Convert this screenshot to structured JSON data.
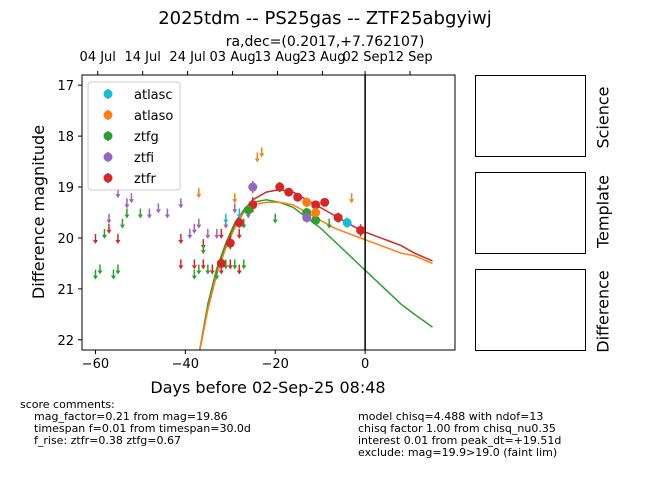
{
  "title": "2025tdm -- PS25gas -- ZTF25abgyiwj",
  "subtitle": "ra,dec=(0.2017,+7.762107)",
  "side_panels": [
    "Science",
    "Template",
    "Difference"
  ],
  "score_comments": {
    "header": "score comments:",
    "lines": [
      "mag_factor=0.21 from mag=19.86",
      "timespan f=0.01 from timespan=30.0d",
      "f_rise: ztfr=0.38 ztfg=0.67"
    ]
  },
  "model_comments": [
    "model chisq=4.488 with ndof=13",
    "chisq factor 1.00 from chisq_nu0.35",
    "interest 0.01 from peak_dt=+19.51d",
    "exclude: mag=19.9>19.0 (faint lim)"
  ],
  "colors": {
    "atlasc": "#17becf",
    "atlaso": "#ff7f0e",
    "ztfg": "#2ca02c",
    "ztfi": "#9467bd",
    "ztfr": "#d62728"
  },
  "chart_data": {
    "type": "scatter",
    "xlabel": "Days before 02-Sep-25 08:48",
    "ylabel": "Difference magnitude",
    "xlim": [
      -63,
      20
    ],
    "ylim": [
      22.2,
      16.8
    ],
    "y_inverted": true,
    "x_ticks": [
      -60,
      -40,
      -20,
      0
    ],
    "y_ticks": [
      17,
      18,
      19,
      20,
      21,
      22
    ],
    "top_ticks": [
      {
        "x": -59.5,
        "label": "04 Jul"
      },
      {
        "x": -49.5,
        "label": "14 Jul"
      },
      {
        "x": -39.5,
        "label": "24 Jul"
      },
      {
        "x": -29.5,
        "label": "03 Aug"
      },
      {
        "x": -19.5,
        "label": "13 Aug"
      },
      {
        "x": -9.5,
        "label": "23 Aug"
      },
      {
        "x": 0,
        "label": "02 Sep"
      },
      {
        "x": 10,
        "label": "12 Sep"
      }
    ],
    "vline_x": 0,
    "legend": [
      "atlasc",
      "atlaso",
      "ztfg",
      "ztfi",
      "ztfr"
    ],
    "legend_position": "upper-left",
    "upper_limits": [
      {
        "band": "ztfr",
        "points": [
          [
            -60,
            20.0
          ],
          [
            -57,
            19.8
          ],
          [
            -55,
            20.0
          ],
          [
            -41,
            20.0
          ],
          [
            -36,
            20.1
          ],
          [
            -32,
            19.9
          ],
          [
            -30,
            20.0
          ],
          [
            -28,
            19.9
          ],
          [
            -41,
            20.5
          ],
          [
            -38,
            20.5
          ],
          [
            -36,
            20.5
          ],
          [
            -34,
            20.6
          ],
          [
            -32,
            20.6
          ],
          [
            -30,
            20.5
          ],
          [
            -28,
            20.6
          ]
        ]
      },
      {
        "band": "ztfg",
        "points": [
          [
            -60,
            20.7
          ],
          [
            -59,
            20.6
          ],
          [
            -58,
            19.9
          ],
          [
            -56,
            20.7
          ],
          [
            -55,
            20.6
          ],
          [
            -54,
            19.7
          ],
          [
            -53,
            19.5
          ],
          [
            -50,
            19.5
          ],
          [
            -38,
            20.7
          ],
          [
            -37,
            20.6
          ],
          [
            -36,
            20.2
          ],
          [
            -35,
            20.6
          ],
          [
            -33,
            20.7
          ],
          [
            -31,
            20.5
          ],
          [
            -30,
            20.1
          ],
          [
            -29,
            20.5
          ],
          [
            -27,
            20.5
          ],
          [
            -27,
            19.7
          ],
          [
            -20,
            19.6
          ],
          [
            -8,
            19.7
          ]
        ]
      },
      {
        "band": "ztfi",
        "points": [
          [
            -57,
            19.6
          ],
          [
            -53,
            19.3
          ],
          [
            -52,
            19.2
          ],
          [
            -48,
            19.5
          ],
          [
            -46,
            19.4
          ],
          [
            -44,
            19.5
          ],
          [
            -41,
            19.3
          ],
          [
            -39,
            19.9
          ],
          [
            -38,
            19.8
          ],
          [
            -35,
            19.9
          ],
          [
            -33,
            19.9
          ],
          [
            -31,
            19.7
          ],
          [
            -29,
            19.4
          ],
          [
            -26,
            19.5
          ],
          [
            -25,
            19.3
          ],
          [
            -55,
            19.1
          ],
          [
            -37,
            19.7
          ]
        ]
      },
      {
        "band": "atlaso",
        "points": [
          [
            -37,
            19.1
          ],
          [
            -29,
            19.2
          ],
          [
            -24,
            18.4
          ],
          [
            -23,
            18.3
          ],
          [
            -3,
            19.2
          ]
        ]
      },
      {
        "band": "atlasc",
        "points": [
          [
            -31,
            19.6
          ],
          [
            -28,
            19.5
          ]
        ]
      }
    ],
    "detections": [
      {
        "band": "ztfr",
        "points": [
          [
            -32,
            20.5,
            0.1
          ],
          [
            -30,
            20.1,
            0.12
          ],
          [
            -28,
            19.7,
            0.1
          ],
          [
            -25,
            19.35,
            0.15
          ],
          [
            -19,
            19.0,
            0.1
          ],
          [
            -17,
            19.1,
            0.08
          ],
          [
            -15,
            19.2,
            0.08
          ],
          [
            -11,
            19.35,
            0.08
          ],
          [
            -9,
            19.3,
            0.08
          ],
          [
            -6,
            19.6,
            0.1
          ],
          [
            -1,
            19.85,
            0.12
          ]
        ]
      },
      {
        "band": "ztfg",
        "points": [
          [
            -26,
            19.45,
            0.1
          ],
          [
            -13,
            19.5,
            0.08
          ],
          [
            -11,
            19.65,
            0.1
          ]
        ]
      },
      {
        "band": "ztfi",
        "points": [
          [
            -25,
            19.0,
            0.12
          ],
          [
            -13,
            19.6,
            0.1
          ]
        ]
      },
      {
        "band": "atlaso",
        "points": [
          [
            -13,
            19.3,
            0.1
          ],
          [
            -11,
            19.5,
            0.1
          ]
        ]
      },
      {
        "band": "atlasc",
        "points": [
          [
            -4,
            19.7,
            0.1
          ]
        ]
      }
    ],
    "models": [
      {
        "band": "ztfr",
        "points": [
          [
            -37,
            22.3
          ],
          [
            -35,
            21.4
          ],
          [
            -33,
            20.7
          ],
          [
            -31,
            20.15
          ],
          [
            -29,
            19.75
          ],
          [
            -27,
            19.45
          ],
          [
            -25,
            19.25
          ],
          [
            -22,
            19.1
          ],
          [
            -19,
            19.05
          ],
          [
            -16,
            19.1
          ],
          [
            -13,
            19.25
          ],
          [
            -10,
            19.4
          ],
          [
            -7,
            19.55
          ],
          [
            -4,
            19.7
          ],
          [
            -1,
            19.85
          ],
          [
            2,
            19.95
          ],
          [
            5,
            20.05
          ],
          [
            8,
            20.15
          ],
          [
            11,
            20.3
          ],
          [
            15,
            20.45
          ]
        ]
      },
      {
        "band": "ztfg",
        "points": [
          [
            -37,
            22.3
          ],
          [
            -35,
            21.3
          ],
          [
            -33,
            20.6
          ],
          [
            -31,
            20.1
          ],
          [
            -29,
            19.7
          ],
          [
            -27,
            19.45
          ],
          [
            -25,
            19.3
          ],
          [
            -22,
            19.25
          ],
          [
            -19,
            19.3
          ],
          [
            -16,
            19.4
          ],
          [
            -13,
            19.6
          ],
          [
            -10,
            19.8
          ],
          [
            -7,
            20.05
          ],
          [
            -4,
            20.3
          ],
          [
            -1,
            20.55
          ],
          [
            2,
            20.8
          ],
          [
            5,
            21.05
          ],
          [
            8,
            21.3
          ],
          [
            11,
            21.5
          ],
          [
            15,
            21.75
          ]
        ]
      },
      {
        "band": "atlaso",
        "points": [
          [
            -37,
            22.3
          ],
          [
            -35,
            21.4
          ],
          [
            -33,
            20.7
          ],
          [
            -31,
            20.2
          ],
          [
            -29,
            19.8
          ],
          [
            -27,
            19.5
          ],
          [
            -25,
            19.35
          ],
          [
            -22,
            19.3
          ],
          [
            -19,
            19.3
          ],
          [
            -16,
            19.35
          ],
          [
            -13,
            19.5
          ],
          [
            -10,
            19.65
          ],
          [
            -7,
            19.8
          ],
          [
            -4,
            19.9
          ],
          [
            -1,
            20.0
          ],
          [
            2,
            20.1
          ],
          [
            5,
            20.2
          ],
          [
            8,
            20.3
          ],
          [
            11,
            20.35
          ],
          [
            15,
            20.5
          ]
        ]
      }
    ]
  }
}
